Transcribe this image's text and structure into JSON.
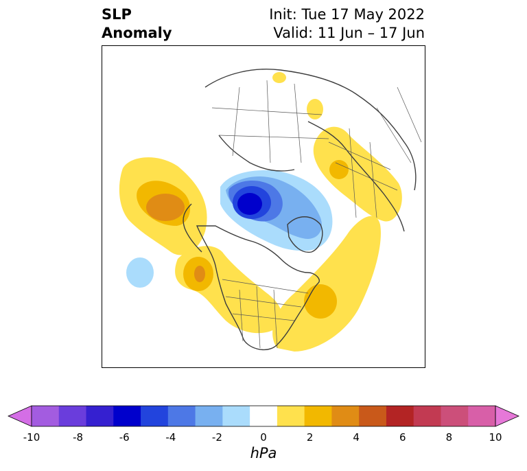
{
  "title": {
    "left_line1": "SLP",
    "left_line2": "Anomaly",
    "right_line1": "Init: Tue 17 May 2022",
    "right_line2": "Valid: 11 Jun – 17 Jun"
  },
  "map": {
    "projection": "north-polar-stereographic",
    "field": "sea level pressure anomaly",
    "features": [
      {
        "name": "negative anomaly core",
        "region": "Arctic Ocean north of Siberia",
        "min_hpa": -6
      },
      {
        "name": "positive anomaly",
        "region": "North Pacific / Bering",
        "max_hpa": 3
      },
      {
        "name": "positive anomaly",
        "region": "Pacific Northwest / western North America",
        "max_hpa": 3
      },
      {
        "name": "positive anomaly",
        "region": "North Atlantic / eastern North America",
        "max_hpa": 2
      },
      {
        "name": "positive anomaly",
        "region": "Eastern Europe / western Russia",
        "max_hpa": 2
      },
      {
        "name": "weak negative anomaly",
        "region": "central North Pacific",
        "min_hpa": -1
      }
    ]
  },
  "colorbar": {
    "unit": "hPa",
    "range": [
      -10,
      10
    ],
    "extend": "both",
    "ticks": [
      "-10",
      "-8",
      "-6",
      "-4",
      "-2",
      "0",
      "2",
      "4",
      "6",
      "8",
      "10"
    ],
    "colors": [
      "#d46ee6",
      "#a35ce0",
      "#6a3ddc",
      "#3520d0",
      "#0000cc",
      "#2244dd",
      "#4d78e6",
      "#78b0f0",
      "#aadcfc",
      "#ffffff",
      "#ffe14d",
      "#f2b800",
      "#e08c15",
      "#c9591a",
      "#b32424",
      "#c23a52",
      "#cc4f7a",
      "#d85fa8",
      "#e678d8"
    ]
  }
}
